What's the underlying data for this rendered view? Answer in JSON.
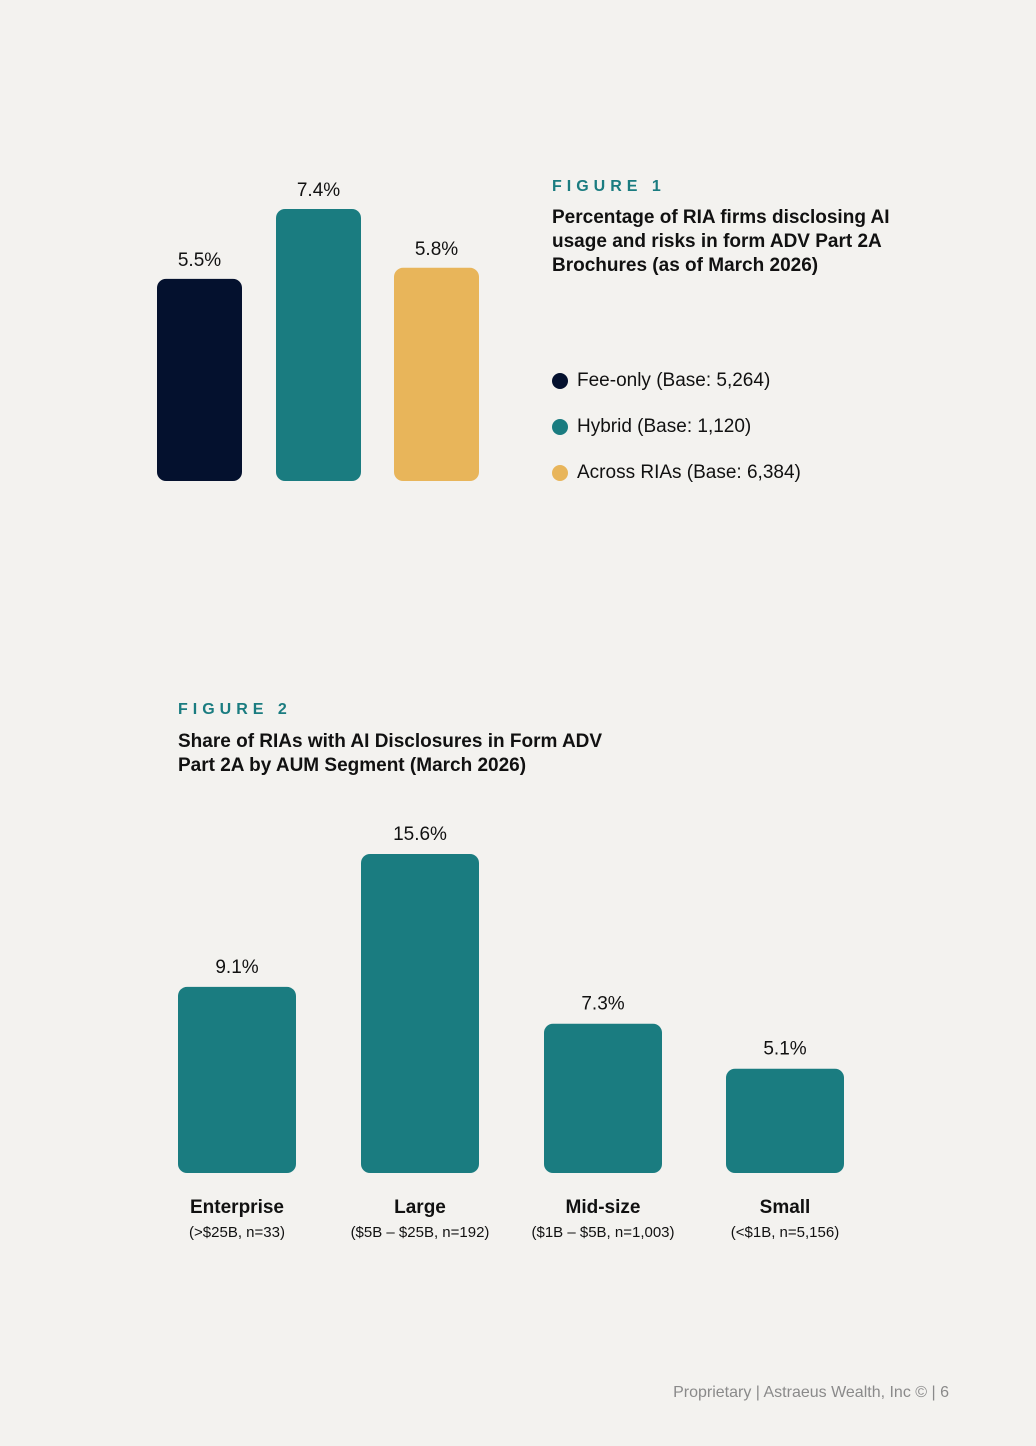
{
  "colors": {
    "navy": "#04112e",
    "teal": "#1a7c80",
    "gold": "#e8b55a",
    "background": "#f3f2ef"
  },
  "figure1": {
    "label": "FIGURE 1",
    "title": "Percentage of RIA firms disclosing AI usage and risks in form ADV Part 2A Brochures (as of March 2026)",
    "legend": [
      {
        "text": "Fee-only (Base: 5,264)",
        "color": "#04112e"
      },
      {
        "text": "Hybrid (Base: 1,120)",
        "color": "#1a7c80"
      },
      {
        "text": "Across RIAs (Base: 6,384)",
        "color": "#e8b55a"
      }
    ]
  },
  "figure2": {
    "label": "FIGURE 2",
    "title": "Share of RIAs with AI Disclosures in Form ADV Part 2A by AUM Segment (March 2026)"
  },
  "footer": {
    "text": "Proprietary | Astraeus Wealth, Inc © | 6"
  },
  "chart_data": [
    {
      "type": "bar",
      "title": "Percentage of RIA firms disclosing AI usage and risks in form ADV Part 2A Brochures (as of March 2026)",
      "categories": [
        "Fee-only (Base: 5,264)",
        "Hybrid (Base: 1,120)",
        "Across RIAs (Base: 6,384)"
      ],
      "values": [
        5.5,
        7.4,
        5.8
      ],
      "value_labels": [
        "5.5%",
        "7.4%",
        "5.8%"
      ],
      "colors": [
        "#04112e",
        "#1a7c80",
        "#e8b55a"
      ],
      "ylim": [
        0,
        7.4
      ],
      "grid": false,
      "legend_position": "right"
    },
    {
      "type": "bar",
      "title": "Share of RIAs with AI Disclosures in Form ADV Part 2A by AUM Segment (March 2026)",
      "categories": [
        "Enterprise",
        "Large",
        "Mid-size",
        "Small"
      ],
      "subcategories": [
        "(>$25B, n=33)",
        "($5B – $25B, n=192)",
        "($1B – $5B, n=1,003)",
        "(<$1B, n=5,156)"
      ],
      "values": [
        9.1,
        15.6,
        7.3,
        5.1
      ],
      "value_labels": [
        "9.1%",
        "15.6%",
        "7.3%",
        "5.1%"
      ],
      "colors": [
        "#1a7c80",
        "#1a7c80",
        "#1a7c80",
        "#1a7c80"
      ],
      "ylim": [
        0,
        15.6
      ],
      "grid": false
    }
  ]
}
